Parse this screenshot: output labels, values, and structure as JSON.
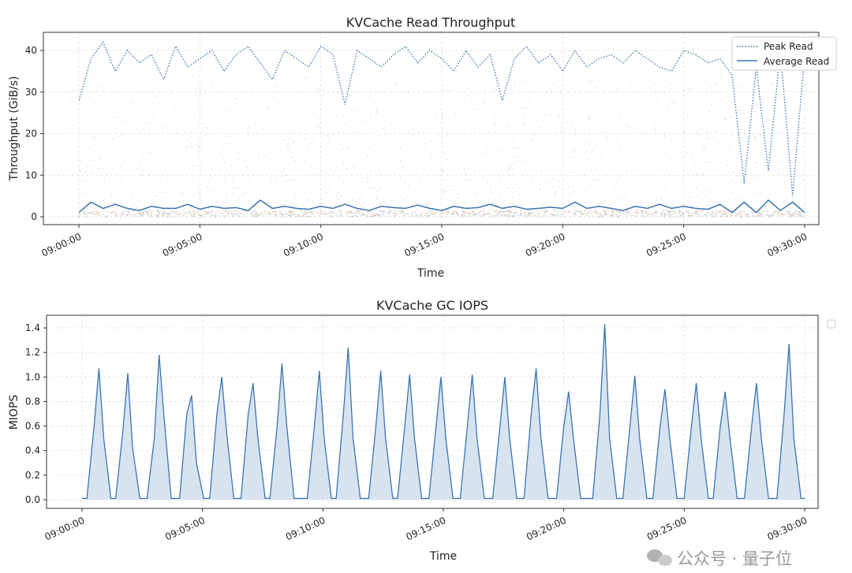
{
  "chart_data": [
    {
      "type": "line",
      "title": "KVCache Read Throughput",
      "xlabel": "Time",
      "ylabel": "Throughput (GiB/s)",
      "xlim": [
        "09:00:00",
        "09:30:00"
      ],
      "ylim": [
        -2,
        44
      ],
      "grid": true,
      "legend_placement": "top-right",
      "xticks": [
        "09:00:00",
        "09:05:00",
        "09:10:00",
        "09:15:00",
        "09:20:00",
        "09:25:00",
        "09:30:00"
      ],
      "yticks": [
        0,
        10,
        20,
        30,
        40
      ],
      "x": [
        "09:00:00",
        "09:00:30",
        "09:01:00",
        "09:01:30",
        "09:02:00",
        "09:02:30",
        "09:03:00",
        "09:03:30",
        "09:04:00",
        "09:04:30",
        "09:05:00",
        "09:05:30",
        "09:06:00",
        "09:06:30",
        "09:07:00",
        "09:07:30",
        "09:08:00",
        "09:08:30",
        "09:09:00",
        "09:09:30",
        "09:10:00",
        "09:10:30",
        "09:11:00",
        "09:11:30",
        "09:12:00",
        "09:12:30",
        "09:13:00",
        "09:13:30",
        "09:14:00",
        "09:14:30",
        "09:15:00",
        "09:15:30",
        "09:16:00",
        "09:16:30",
        "09:17:00",
        "09:17:30",
        "09:18:00",
        "09:18:30",
        "09:19:00",
        "09:19:30",
        "09:20:00",
        "09:20:30",
        "09:21:00",
        "09:21:30",
        "09:22:00",
        "09:22:30",
        "09:23:00",
        "09:23:30",
        "09:24:00",
        "09:24:30",
        "09:25:00",
        "09:25:30",
        "09:26:00",
        "09:26:30",
        "09:27:00",
        "09:27:30",
        "09:28:00",
        "09:28:30",
        "09:29:00",
        "09:29:30",
        "09:30:00"
      ],
      "series": [
        {
          "name": "Peak Read",
          "style": "dotted",
          "color": "#3a75b0",
          "values": [
            28,
            38,
            42,
            35,
            40,
            37,
            39,
            33,
            41,
            36,
            38,
            40,
            35,
            39,
            41,
            37,
            33,
            40,
            38,
            36,
            41,
            39,
            27,
            40,
            38,
            36,
            39,
            41,
            37,
            40,
            38,
            35,
            40,
            36,
            39,
            28,
            38,
            41,
            37,
            39,
            35,
            40,
            36,
            38,
            39,
            37,
            40,
            38,
            36,
            35,
            40,
            39,
            37,
            38,
            34,
            8,
            36,
            11,
            40,
            5,
            39
          ]
        },
        {
          "name": "Average Read",
          "style": "solid",
          "color": "#3a75b0",
          "values": [
            1,
            3.5,
            2,
            3,
            2,
            1.5,
            2.5,
            2,
            2,
            3,
            1.8,
            2.5,
            2,
            2.2,
            1.5,
            4,
            2,
            2.5,
            2,
            1.8,
            2.5,
            2,
            3,
            2,
            1.5,
            2.5,
            2.2,
            2,
            2.8,
            2,
            1.5,
            2.5,
            2,
            2.2,
            3,
            2,
            2.5,
            1.8,
            2,
            2.3,
            2,
            3.5,
            2,
            2.5,
            2,
            1.5,
            2.5,
            2,
            3,
            2,
            2.5,
            2,
            1.8,
            3,
            1,
            3.5,
            1,
            4,
            1.5,
            3.5,
            1
          ]
        }
      ]
    },
    {
      "type": "area",
      "title": "KVCache GC IOPS",
      "xlabel": "Time",
      "ylabel": "MIOPS",
      "xlim": [
        "09:00:00",
        "09:30:00"
      ],
      "ylim": [
        -0.07,
        1.5
      ],
      "grid": true,
      "legend_placement": "top-right",
      "xticks": [
        "09:00:00",
        "09:05:00",
        "09:10:00",
        "09:15:00",
        "09:20:00",
        "09:25:00",
        "09:30:00"
      ],
      "yticks": [
        "0.0",
        "0.2",
        "0.4",
        "0.6",
        "0.8",
        "1.0",
        "1.2",
        "1.4"
      ],
      "color": "#3a75b0",
      "fill_color": "#d3e1ee",
      "points": [
        [
          "09:00:00",
          0.01
        ],
        [
          "09:00:12",
          0.01
        ],
        [
          "09:00:30",
          0.6
        ],
        [
          "09:00:42",
          1.07
        ],
        [
          "09:00:54",
          0.5
        ],
        [
          "09:01:12",
          0.01
        ],
        [
          "09:01:24",
          0.01
        ],
        [
          "09:01:42",
          0.57
        ],
        [
          "09:01:54",
          1.03
        ],
        [
          "09:02:06",
          0.42
        ],
        [
          "09:02:24",
          0.01
        ],
        [
          "09:02:42",
          0.01
        ],
        [
          "09:03:00",
          0.5
        ],
        [
          "09:03:12",
          1.18
        ],
        [
          "09:03:24",
          0.68
        ],
        [
          "09:03:42",
          0.01
        ],
        [
          "09:04:03",
          0.01
        ],
        [
          "09:04:21",
          0.7
        ],
        [
          "09:04:33",
          0.85
        ],
        [
          "09:04:45",
          0.3
        ],
        [
          "09:05:03",
          0.01
        ],
        [
          "09:05:18",
          0.01
        ],
        [
          "09:05:36",
          0.7
        ],
        [
          "09:05:48",
          1.0
        ],
        [
          "09:06:00",
          0.55
        ],
        [
          "09:06:18",
          0.01
        ],
        [
          "09:06:36",
          0.01
        ],
        [
          "09:06:54",
          0.7
        ],
        [
          "09:07:06",
          0.95
        ],
        [
          "09:07:18",
          0.5
        ],
        [
          "09:07:36",
          0.01
        ],
        [
          "09:07:48",
          0.01
        ],
        [
          "09:08:06",
          0.6
        ],
        [
          "09:08:18",
          1.11
        ],
        [
          "09:08:30",
          0.6
        ],
        [
          "09:08:48",
          0.01
        ],
        [
          "09:09:21",
          0.01
        ],
        [
          "09:09:39",
          0.6
        ],
        [
          "09:09:51",
          1.05
        ],
        [
          "09:10:03",
          0.5
        ],
        [
          "09:10:21",
          0.01
        ],
        [
          "09:10:33",
          0.01
        ],
        [
          "09:10:51",
          0.7
        ],
        [
          "09:11:03",
          1.24
        ],
        [
          "09:11:15",
          0.5
        ],
        [
          "09:11:33",
          0.01
        ],
        [
          "09:11:54",
          0.01
        ],
        [
          "09:12:12",
          0.6
        ],
        [
          "09:12:24",
          1.05
        ],
        [
          "09:12:36",
          0.5
        ],
        [
          "09:12:54",
          0.01
        ],
        [
          "09:13:06",
          0.01
        ],
        [
          "09:13:24",
          0.6
        ],
        [
          "09:13:36",
          1.02
        ],
        [
          "09:13:48",
          0.5
        ],
        [
          "09:14:06",
          0.01
        ],
        [
          "09:14:24",
          0.01
        ],
        [
          "09:14:42",
          0.6
        ],
        [
          "09:14:54",
          1.0
        ],
        [
          "09:15:06",
          0.5
        ],
        [
          "09:15:24",
          0.01
        ],
        [
          "09:15:42",
          0.01
        ],
        [
          "09:16:00",
          0.6
        ],
        [
          "09:16:12",
          1.02
        ],
        [
          "09:16:24",
          0.5
        ],
        [
          "09:16:42",
          0.01
        ],
        [
          "09:17:03",
          0.01
        ],
        [
          "09:17:21",
          0.6
        ],
        [
          "09:17:33",
          1.0
        ],
        [
          "09:17:45",
          0.5
        ],
        [
          "09:18:03",
          0.01
        ],
        [
          "09:18:21",
          0.01
        ],
        [
          "09:18:39",
          0.7
        ],
        [
          "09:18:51",
          1.07
        ],
        [
          "09:19:03",
          0.5
        ],
        [
          "09:19:21",
          0.01
        ],
        [
          "09:19:42",
          0.01
        ],
        [
          "09:20:00",
          0.6
        ],
        [
          "09:20:12",
          0.88
        ],
        [
          "09:20:24",
          0.5
        ],
        [
          "09:20:42",
          0.01
        ],
        [
          "09:21:12",
          0.01
        ],
        [
          "09:21:30",
          0.7
        ],
        [
          "09:21:42",
          1.43
        ],
        [
          "09:21:54",
          0.5
        ],
        [
          "09:22:12",
          0.01
        ],
        [
          "09:22:27",
          0.01
        ],
        [
          "09:22:45",
          0.6
        ],
        [
          "09:22:57",
          1.01
        ],
        [
          "09:23:09",
          0.5
        ],
        [
          "09:23:27",
          0.01
        ],
        [
          "09:23:42",
          0.01
        ],
        [
          "09:24:00",
          0.6
        ],
        [
          "09:24:12",
          0.9
        ],
        [
          "09:24:24",
          0.5
        ],
        [
          "09:24:42",
          0.01
        ],
        [
          "09:25:00",
          0.01
        ],
        [
          "09:25:18",
          0.6
        ],
        [
          "09:25:30",
          0.95
        ],
        [
          "09:25:42",
          0.5
        ],
        [
          "09:26:00",
          0.01
        ],
        [
          "09:26:12",
          0.01
        ],
        [
          "09:26:30",
          0.6
        ],
        [
          "09:26:42",
          0.88
        ],
        [
          "09:26:54",
          0.5
        ],
        [
          "09:27:12",
          0.01
        ],
        [
          "09:27:30",
          0.01
        ],
        [
          "09:27:48",
          0.6
        ],
        [
          "09:28:00",
          0.95
        ],
        [
          "09:28:12",
          0.5
        ],
        [
          "09:28:30",
          0.01
        ],
        [
          "09:28:51",
          0.01
        ],
        [
          "09:29:09",
          0.7
        ],
        [
          "09:29:21",
          1.27
        ],
        [
          "09:29:33",
          0.5
        ],
        [
          "09:29:51",
          0.01
        ],
        [
          "09:30:00",
          0.01
        ]
      ]
    }
  ],
  "watermark": {
    "text": "公众号 · 量子位",
    "icon": "wechat-icon"
  }
}
